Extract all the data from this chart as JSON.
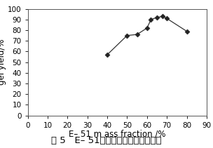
{
  "x": [
    40,
    50,
    55,
    60,
    62,
    65,
    68,
    70,
    80
  ],
  "y": [
    57,
    75,
    76,
    82,
    90,
    92,
    93,
    91,
    79
  ],
  "xlim": [
    0,
    90
  ],
  "ylim": [
    0,
    100
  ],
  "xticks": [
    0,
    10,
    20,
    30,
    40,
    50,
    60,
    70,
    80,
    90
  ],
  "yticks": [
    0,
    10,
    20,
    30,
    40,
    50,
    60,
    70,
    80,
    90,
    100
  ],
  "xlabel": "E– 51 m ass fraction /%",
  "ylabel": "gel yield/%",
  "caption_prefix": "图 5   E– 51",
  "caption_suffix": "的加入量对凝胶率的影响",
  "line_color": "#333333",
  "marker": "D",
  "marker_size": 3.5,
  "marker_color": "#222222",
  "line_width": 0.9,
  "bg_color": "#ffffff",
  "xlabel_fontsize": 8.5,
  "ylabel_fontsize": 8.5,
  "tick_fontsize": 7.5,
  "caption_fontsize": 9.5
}
